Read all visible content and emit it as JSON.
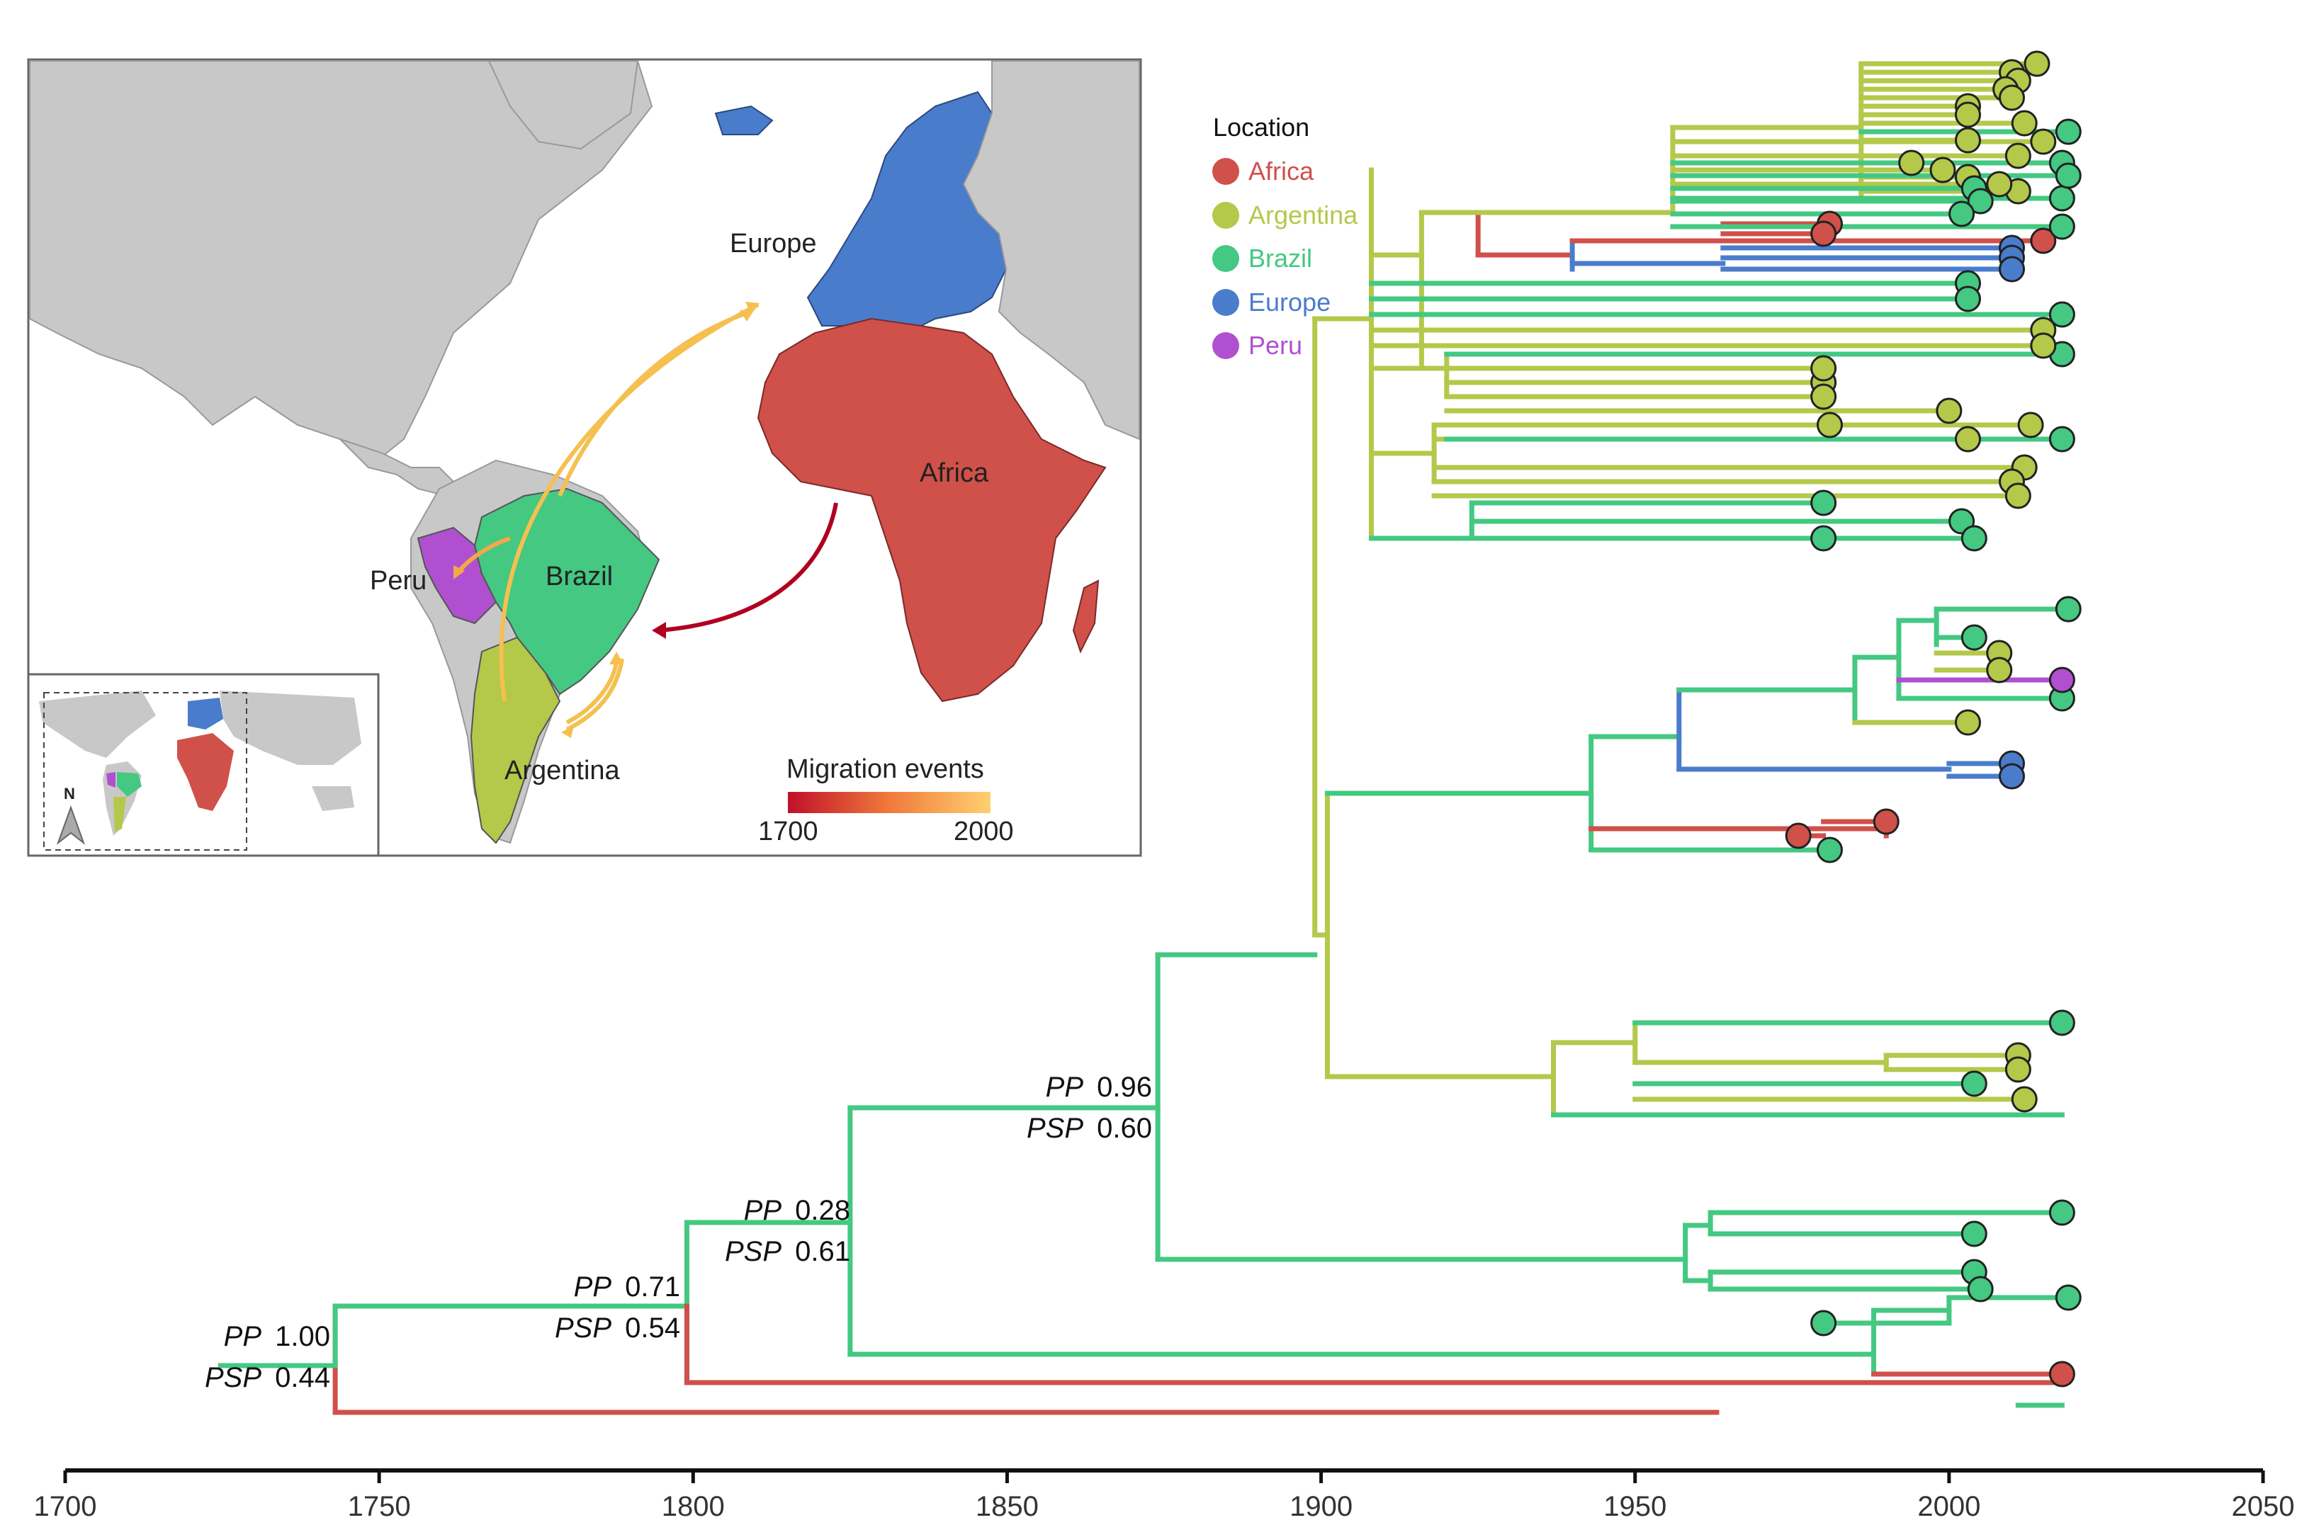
{
  "legend": {
    "title": "Location",
    "items": [
      {
        "key": "africa",
        "label": "Africa",
        "color": "#d0504a"
      },
      {
        "key": "argentina",
        "label": "Argentina",
        "color": "#b4c84a"
      },
      {
        "key": "brazil",
        "label": "Brazil",
        "color": "#44c882"
      },
      {
        "key": "europe",
        "label": "Europe",
        "color": "#4a7ccc"
      },
      {
        "key": "peru",
        "label": "Peru",
        "color": "#b050d0"
      }
    ]
  },
  "map": {
    "labels": {
      "europe": "Europe",
      "africa": "Africa",
      "brazil": "Brazil",
      "peru": "Peru",
      "argentina": "Argentina"
    },
    "migration_title": "Migration events",
    "scale_min": "1700",
    "scale_max": "2000",
    "north": "N",
    "colors": {
      "land": "#c8c8c8",
      "ocean": "#ffffff",
      "low": "#c0102a",
      "high": "#ffd070"
    }
  },
  "support_labels": [
    {
      "pp_label": "PP",
      "pp": "1.00",
      "psp_label": "PSP",
      "psp": "0.44"
    },
    {
      "pp_label": "PP",
      "pp": "0.71",
      "psp_label": "PSP",
      "psp": "0.54"
    },
    {
      "pp_label": "PP",
      "pp": "0.28",
      "psp_label": "PSP",
      "psp": "0.61"
    },
    {
      "pp_label": "PP",
      "pp": "0.96",
      "psp_label": "PSP",
      "psp": "0.60"
    }
  ],
  "chart_data": {
    "type": "phylogenetic-tree",
    "title": "",
    "xlabel": "",
    "ylabel": "",
    "xlim": [
      1700,
      2050
    ],
    "x_ticks": [
      1700,
      1750,
      1800,
      1850,
      1900,
      1950,
      2000,
      2050
    ],
    "x_tick_labels": [
      "1700",
      "1750",
      "1800",
      "1850",
      "1900",
      "1950",
      "2000",
      "2050"
    ],
    "root_year": 1727,
    "nodes": [
      {
        "id": "n1",
        "year": 1743,
        "support": 0
      },
      {
        "id": "n2",
        "year": 1799,
        "support": 1
      },
      {
        "id": "n3",
        "year": 1825,
        "support": 2
      },
      {
        "id": "n4",
        "year": 1874,
        "support": 3
      },
      {
        "id": "n5",
        "year": 1899
      },
      {
        "id": "n6",
        "year": 1900
      },
      {
        "id": "n7",
        "year": 1908
      },
      {
        "id": "n8",
        "year": 1916
      },
      {
        "id": "n9",
        "year": 1925
      },
      {
        "id": "n10",
        "year": 1956
      },
      {
        "id": "n11",
        "year": 1940
      },
      {
        "id": "n12",
        "year": 1964
      },
      {
        "id": "n13",
        "year": 1943
      },
      {
        "id": "n14",
        "year": 1957
      },
      {
        "id": "n15",
        "year": 1901
      },
      {
        "id": "n16",
        "year": 1937
      },
      {
        "id": "n17",
        "year": 1958
      },
      {
        "id": "n18",
        "year": 1962
      }
    ],
    "tips": [
      {
        "year": 2014,
        "location": "Argentina"
      },
      {
        "year": 2010,
        "location": "Argentina"
      },
      {
        "year": 2011,
        "location": "Argentina"
      },
      {
        "year": 2009,
        "location": "Argentina"
      },
      {
        "year": 2010,
        "location": "Argentina"
      },
      {
        "year": 2003,
        "location": "Argentina"
      },
      {
        "year": 2003,
        "location": "Argentina"
      },
      {
        "year": 2012,
        "location": "Argentina"
      },
      {
        "year": 2019,
        "location": "Brazil"
      },
      {
        "year": 2003,
        "location": "Argentina"
      },
      {
        "year": 1994,
        "location": "Argentina"
      },
      {
        "year": 2003,
        "location": "Argentina"
      },
      {
        "year": 2011,
        "location": "Argentina"
      },
      {
        "year": 2015,
        "location": "Argentina"
      },
      {
        "year": 2011,
        "location": "Argentina"
      },
      {
        "year": 1999,
        "location": "Argentina"
      },
      {
        "year": 2008,
        "location": "Argentina"
      },
      {
        "year": 2018,
        "location": "Brazil"
      },
      {
        "year": 2018,
        "location": "Brazil"
      },
      {
        "year": 2019,
        "location": "Brazil"
      },
      {
        "year": 2004,
        "location": "Brazil"
      },
      {
        "year": 2005,
        "location": "Brazil"
      },
      {
        "year": 2002,
        "location": "Brazil"
      },
      {
        "year": 2018,
        "location": "Brazil"
      },
      {
        "year": 1981,
        "location": "Africa"
      },
      {
        "year": 1980,
        "location": "Africa"
      },
      {
        "year": 2015,
        "location": "Africa"
      },
      {
        "year": 2010,
        "location": "Europe"
      },
      {
        "year": 2010,
        "location": "Europe"
      },
      {
        "year": 2010,
        "location": "Europe"
      },
      {
        "year": 2003,
        "location": "Brazil"
      },
      {
        "year": 2003,
        "location": "Brazil"
      },
      {
        "year": 2018,
        "location": "Brazil"
      },
      {
        "year": 2015,
        "location": "Argentina"
      },
      {
        "year": 2015,
        "location": "Argentina"
      },
      {
        "year": 1980,
        "location": "Argentina"
      },
      {
        "year": 1980,
        "location": "Argentina"
      },
      {
        "year": 2000,
        "location": "Argentina"
      },
      {
        "year": 1980,
        "location": "Argentina"
      },
      {
        "year": 1981,
        "location": "Argentina"
      },
      {
        "year": 2018,
        "location": "Brazil"
      },
      {
        "year": 2018,
        "location": "Brazil"
      },
      {
        "year": 2013,
        "location": "Argentina"
      },
      {
        "year": 2003,
        "location": "Argentina"
      },
      {
        "year": 2000,
        "location": "Argentina"
      },
      {
        "year": 2012,
        "location": "Argentina"
      },
      {
        "year": 2010,
        "location": "Argentina"
      },
      {
        "year": 2011,
        "location": "Argentina"
      },
      {
        "year": 1980,
        "location": "Brazil"
      },
      {
        "year": 2002,
        "location": "Brazil"
      },
      {
        "year": 2004,
        "location": "Brazil"
      },
      {
        "year": 1980,
        "location": "Brazil"
      },
      {
        "year": 2004,
        "location": "Brazil"
      },
      {
        "year": 2019,
        "location": "Brazil"
      },
      {
        "year": 2004,
        "location": "Brazil"
      },
      {
        "year": 2008,
        "location": "Argentina"
      },
      {
        "year": 2008,
        "location": "Argentina"
      },
      {
        "year": 2018,
        "location": "Peru"
      },
      {
        "year": 2018,
        "location": "Brazil"
      },
      {
        "year": 2003,
        "location": "Argentina"
      },
      {
        "year": 2010,
        "location": "Europe"
      },
      {
        "year": 2010,
        "location": "Europe"
      },
      {
        "year": 1990,
        "location": "Africa"
      },
      {
        "year": 1976,
        "location": "Africa"
      },
      {
        "year": 1981,
        "location": "Brazil"
      },
      {
        "year": 2018,
        "location": "Brazil"
      },
      {
        "year": 2011,
        "location": "Argentina"
      },
      {
        "year": 2011,
        "location": "Argentina"
      },
      {
        "year": 2004,
        "location": "Brazil"
      },
      {
        "year": 2012,
        "location": "Argentina"
      },
      {
        "year": 2018,
        "location": "Brazil"
      },
      {
        "year": 2018,
        "location": "Brazil"
      },
      {
        "year": 2004,
        "location": "Brazil"
      },
      {
        "year": 2004,
        "location": "Brazil"
      },
      {
        "year": 2005,
        "location": "Brazil"
      },
      {
        "year": 2005,
        "location": "Brazil"
      },
      {
        "year": 2015,
        "location": "Argentina"
      },
      {
        "year": 2003,
        "location": "Brazil"
      },
      {
        "year": 2019,
        "location": "Brazil"
      },
      {
        "year": 1980,
        "location": "Brazil"
      },
      {
        "year": 2018,
        "location": "Africa"
      },
      {
        "year": 2018,
        "location": "Brazil"
      },
      {
        "year": 1963,
        "location": "Africa"
      }
    ]
  }
}
